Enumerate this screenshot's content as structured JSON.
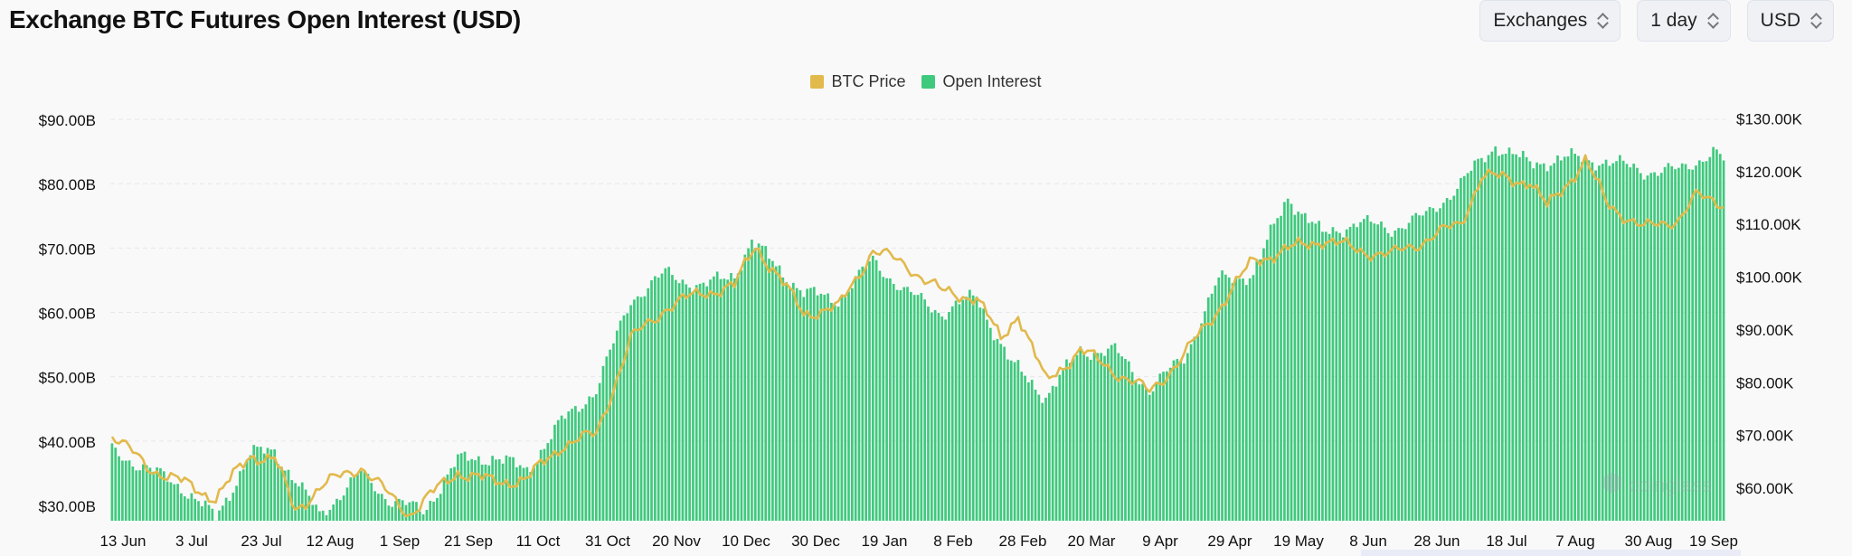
{
  "header": {
    "title": "Exchange BTC Futures Open Interest (USD)"
  },
  "controls": [
    {
      "label": "Exchanges",
      "name": "exchanges-select"
    },
    {
      "label": "1 day",
      "name": "interval-select"
    },
    {
      "label": "USD",
      "name": "currency-select"
    }
  ],
  "legend": [
    {
      "label": "BTC Price",
      "color": "#e2b94b"
    },
    {
      "label": "Open Interest",
      "color": "#3fc97d"
    }
  ],
  "chart_data": {
    "type": "bar",
    "legend_position": "top-center",
    "grid": true,
    "x_tick_labels": [
      "13 Jun",
      "3 Jul",
      "23 Jul",
      "12 Aug",
      "1 Sep",
      "21 Sep",
      "11 Oct",
      "31 Oct",
      "20 Nov",
      "10 Dec",
      "30 Dec",
      "19 Jan",
      "8 Feb",
      "28 Feb",
      "20 Mar",
      "9 Apr",
      "29 Apr",
      "19 May",
      "8 Jun",
      "28 Jun",
      "18 Jul",
      "7 Aug",
      "30 Aug",
      "19 Sep"
    ],
    "y_left": {
      "ticks": [
        "$30.00B",
        "$40.00B",
        "$50.00B",
        "$60.00B",
        "$70.00B",
        "$80.00B",
        "$90.00B"
      ],
      "min": 30,
      "max": 90,
      "unit": "B"
    },
    "y_right": {
      "ticks": [
        "$60.00K",
        "$70.00K",
        "$80.00K",
        "$90.00K",
        "$100.00K",
        "$110.00K",
        "$120.00K",
        "$130.00K"
      ],
      "min": 60,
      "max": 130,
      "unit": "K"
    },
    "series": [
      {
        "name": "Open Interest",
        "axis": "left",
        "type": "bar",
        "color": "#3fc97d",
        "anchors": [
          [
            "13 Jun",
            38.5
          ],
          [
            "3 Jul",
            33.0
          ],
          [
            "13 Jul",
            28.0
          ],
          [
            "23 Jul",
            38.0
          ],
          [
            "30 Jul",
            38.5
          ],
          [
            "12 Aug",
            28.5
          ],
          [
            "24 Aug",
            35.0
          ],
          [
            "1 Sep",
            31.0
          ],
          [
            "11 Sep",
            29.0
          ],
          [
            "21 Sep",
            37.0
          ],
          [
            "1 Oct",
            37.5
          ],
          [
            "11 Oct",
            35.5
          ],
          [
            "21 Oct",
            43.0
          ],
          [
            "31 Oct",
            48.0
          ],
          [
            "10 Nov",
            62.0
          ],
          [
            "20 Nov",
            66.0
          ],
          [
            "1 Dec",
            64.0
          ],
          [
            "10 Dec",
            66.0
          ],
          [
            "15 Dec",
            71.0
          ],
          [
            "30 Dec",
            63.0
          ],
          [
            "9 Jan",
            62.0
          ],
          [
            "19 Jan",
            68.0
          ],
          [
            "29 Jan",
            63.0
          ],
          [
            "8 Feb",
            60.0
          ],
          [
            "18 Feb",
            62.5
          ],
          [
            "28 Feb",
            52.0
          ],
          [
            "10 Mar",
            47.0
          ],
          [
            "20 Mar",
            54.0
          ],
          [
            "30 Mar",
            54.0
          ],
          [
            "9 Apr",
            48.0
          ],
          [
            "19 Apr",
            53.0
          ],
          [
            "29 Apr",
            65.0
          ],
          [
            "9 May",
            66.0
          ],
          [
            "19 May",
            78.0
          ],
          [
            "29 May",
            72.0
          ],
          [
            "8 Jun",
            74.0
          ],
          [
            "18 Jun",
            73.0
          ],
          [
            "28 Jun",
            75.0
          ],
          [
            "8 Jul",
            80.0
          ],
          [
            "18 Jul",
            86.0
          ],
          [
            "28 Jul",
            83.0
          ],
          [
            "7 Aug",
            84.0
          ],
          [
            "19 Aug",
            83.5
          ],
          [
            "30 Aug",
            82.0
          ],
          [
            "9 Sep",
            82.0
          ],
          [
            "19 Sep",
            85.0
          ],
          [
            "22 Sep",
            83.5
          ]
        ]
      },
      {
        "name": "BTC Price",
        "axis": "right",
        "type": "line",
        "color": "#e2b94b",
        "anchors": [
          [
            "13 Jun",
            70.0
          ],
          [
            "23 Jun",
            64.0
          ],
          [
            "3 Jul",
            61.0
          ],
          [
            "13 Jul",
            58.0
          ],
          [
            "23 Jul",
            66.0
          ],
          [
            "30 Jul",
            65.5
          ],
          [
            "5 Aug",
            55.5
          ],
          [
            "12 Aug",
            60.0
          ],
          [
            "24 Aug",
            64.0
          ],
          [
            "1 Sep",
            58.5
          ],
          [
            "7 Sep",
            55.0
          ],
          [
            "21 Sep",
            63.0
          ],
          [
            "1 Oct",
            61.0
          ],
          [
            "11 Oct",
            61.5
          ],
          [
            "21 Oct",
            68.0
          ],
          [
            "31 Oct",
            70.0
          ],
          [
            "10 Nov",
            88.0
          ],
          [
            "20 Nov",
            94.0
          ],
          [
            "1 Dec",
            97.0
          ],
          [
            "10 Dec",
            98.0
          ],
          [
            "16 Dec",
            106.0
          ],
          [
            "30 Dec",
            93.0
          ],
          [
            "9 Jan",
            94.0
          ],
          [
            "19 Jan",
            105.0
          ],
          [
            "29 Jan",
            102.0
          ],
          [
            "8 Feb",
            97.0
          ],
          [
            "18 Feb",
            96.0
          ],
          [
            "25 Feb",
            88.0
          ],
          [
            "2 Mar",
            93.0
          ],
          [
            "10 Mar",
            80.0
          ],
          [
            "20 Mar",
            86.0
          ],
          [
            "30 Mar",
            82.0
          ],
          [
            "9 Apr",
            78.0
          ],
          [
            "19 Apr",
            85.0
          ],
          [
            "29 Apr",
            94.0
          ],
          [
            "9 May",
            103.0
          ],
          [
            "19 May",
            105.0
          ],
          [
            "29 May",
            107.0
          ],
          [
            "8 Jun",
            105.0
          ],
          [
            "18 Jun",
            104.0
          ],
          [
            "28 Jun",
            107.0
          ],
          [
            "8 Jul",
            110.0
          ],
          [
            "14 Jul",
            119.0
          ],
          [
            "28 Jul",
            118.0
          ],
          [
            "2 Aug",
            113.0
          ],
          [
            "13 Aug",
            122.0
          ],
          [
            "19 Aug",
            114.0
          ],
          [
            "30 Aug",
            109.0
          ],
          [
            "9 Sep",
            111.0
          ],
          [
            "14 Sep",
            115.0
          ],
          [
            "22 Sep",
            114.0
          ]
        ]
      }
    ]
  },
  "watermark": {
    "text": "coinglass"
  }
}
